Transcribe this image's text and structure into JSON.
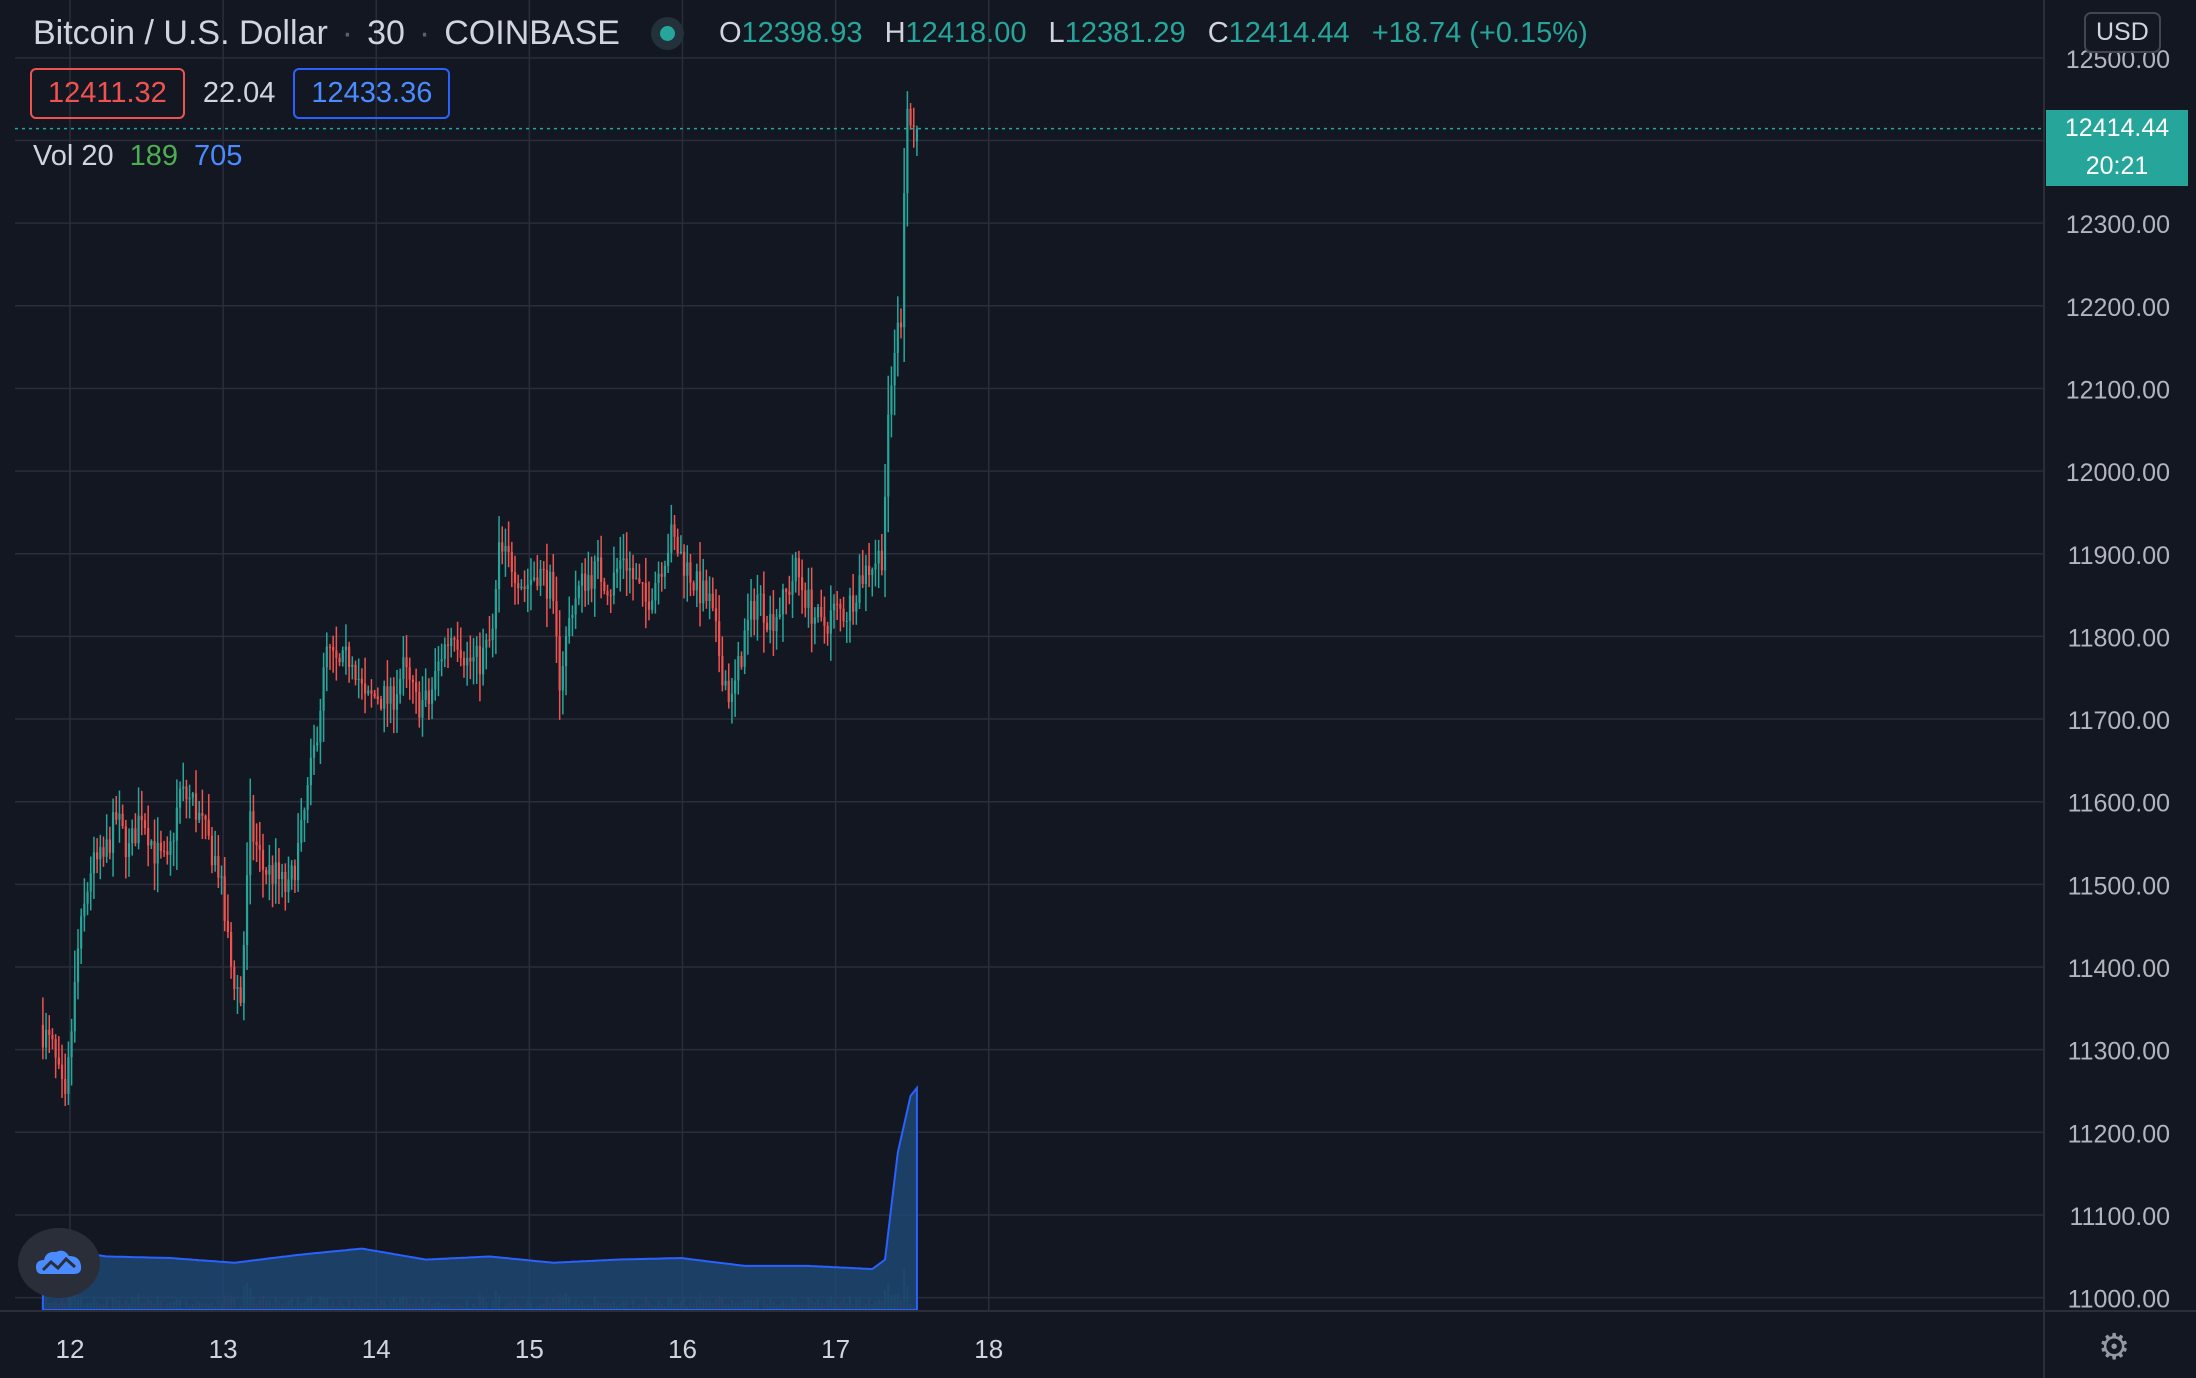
{
  "header": {
    "symbol": "Bitcoin / U.S. Dollar",
    "interval": "30",
    "exchange": "COINBASE",
    "o_label": "O",
    "open": "12398.93",
    "h_label": "H",
    "high": "12418.00",
    "l_label": "L",
    "low": "12381.29",
    "c_label": "C",
    "close": "12414.44",
    "change": "+18.74 (+0.15%)"
  },
  "quote": {
    "bid": "12411.32",
    "spread": "22.04",
    "ask": "12433.36"
  },
  "volume_legend": {
    "label": "Vol 20",
    "value": "189",
    "ma": "705"
  },
  "currency_button": "USD",
  "last_price": {
    "price": "12414.44",
    "countdown": "20:21"
  },
  "colors": {
    "up": "#26a69a",
    "down": "#ef5350",
    "background": "#131722",
    "grid": "#2a2e39",
    "volume_ma": "#2962ff"
  },
  "icons": {
    "logo": "tradingview-cloud-icon",
    "settings": "gear-icon"
  },
  "chart_data": {
    "type": "candlestick",
    "ylim": [
      10985,
      12570
    ],
    "y_ticks": [
      11000,
      11100,
      11200,
      11300,
      11400,
      11500,
      11600,
      11700,
      11800,
      11900,
      12000,
      12100,
      12200,
      12300,
      12400,
      12500
    ],
    "x_ticks": [
      {
        "label": "12",
        "pos": 0
      },
      {
        "label": "13",
        "pos": 48
      },
      {
        "label": "14",
        "pos": 96
      },
      {
        "label": "15",
        "pos": 144
      },
      {
        "label": "16",
        "pos": 192
      },
      {
        "label": "17",
        "pos": 240
      },
      {
        "label": "18",
        "pos": 288
      }
    ],
    "x_index_offset": -8.5,
    "price_waypoints": [
      [
        0,
        11330
      ],
      [
        4,
        11300
      ],
      [
        8,
        11230
      ],
      [
        12,
        11420
      ],
      [
        16,
        11520
      ],
      [
        20,
        11530
      ],
      [
        24,
        11580
      ],
      [
        28,
        11540
      ],
      [
        32,
        11590
      ],
      [
        36,
        11540
      ],
      [
        40,
        11520
      ],
      [
        44,
        11610
      ],
      [
        48,
        11600
      ],
      [
        52,
        11560
      ],
      [
        56,
        11520
      ],
      [
        60,
        11400
      ],
      [
        63,
        11360
      ],
      [
        66,
        11570
      ],
      [
        70,
        11520
      ],
      [
        74,
        11510
      ],
      [
        78,
        11490
      ],
      [
        82,
        11560
      ],
      [
        86,
        11660
      ],
      [
        90,
        11780
      ],
      [
        94,
        11760
      ],
      [
        98,
        11780
      ],
      [
        102,
        11720
      ],
      [
        106,
        11730
      ],
      [
        110,
        11720
      ],
      [
        114,
        11760
      ],
      [
        118,
        11720
      ],
      [
        122,
        11720
      ],
      [
        126,
        11780
      ],
      [
        130,
        11810
      ],
      [
        134,
        11770
      ],
      [
        138,
        11770
      ],
      [
        142,
        11800
      ],
      [
        144,
        11900
      ],
      [
        148,
        11890
      ],
      [
        152,
        11860
      ],
      [
        156,
        11880
      ],
      [
        160,
        11860
      ],
      [
        163,
        11750
      ],
      [
        167,
        11840
      ],
      [
        171,
        11870
      ],
      [
        175,
        11880
      ],
      [
        179,
        11860
      ],
      [
        183,
        11900
      ],
      [
        186,
        11870
      ],
      [
        190,
        11840
      ],
      [
        194,
        11880
      ],
      [
        198,
        11920
      ],
      [
        202,
        11890
      ],
      [
        206,
        11860
      ],
      [
        210,
        11840
      ],
      [
        214,
        11760
      ],
      [
        217,
        11720
      ],
      [
        221,
        11800
      ],
      [
        225,
        11850
      ],
      [
        229,
        11820
      ],
      [
        233,
        11840
      ],
      [
        237,
        11880
      ],
      [
        241,
        11840
      ],
      [
        245,
        11810
      ],
      [
        249,
        11830
      ],
      [
        253,
        11830
      ],
      [
        257,
        11870
      ],
      [
        261,
        11890
      ],
      [
        264,
        11900
      ],
      [
        266,
        12050
      ],
      [
        268,
        12150
      ],
      [
        270,
        12190
      ],
      [
        271,
        12350
      ],
      [
        272,
        12440
      ],
      [
        273,
        12420
      ],
      [
        274,
        12414
      ]
    ],
    "last_candle": {
      "open": 12398.93,
      "high": 12418.0,
      "low": 12381.29,
      "close": 12414.44
    },
    "volume_ma_waypoints": [
      [
        0,
        200
      ],
      [
        20,
        170
      ],
      [
        40,
        165
      ],
      [
        60,
        150
      ],
      [
        80,
        175
      ],
      [
        100,
        195
      ],
      [
        120,
        160
      ],
      [
        140,
        170
      ],
      [
        160,
        150
      ],
      [
        180,
        160
      ],
      [
        200,
        165
      ],
      [
        220,
        140
      ],
      [
        240,
        140
      ],
      [
        260,
        130
      ],
      [
        264,
        160
      ],
      [
        268,
        500
      ],
      [
        272,
        680
      ],
      [
        274,
        705
      ]
    ],
    "volume_scale_max": 4000
  }
}
